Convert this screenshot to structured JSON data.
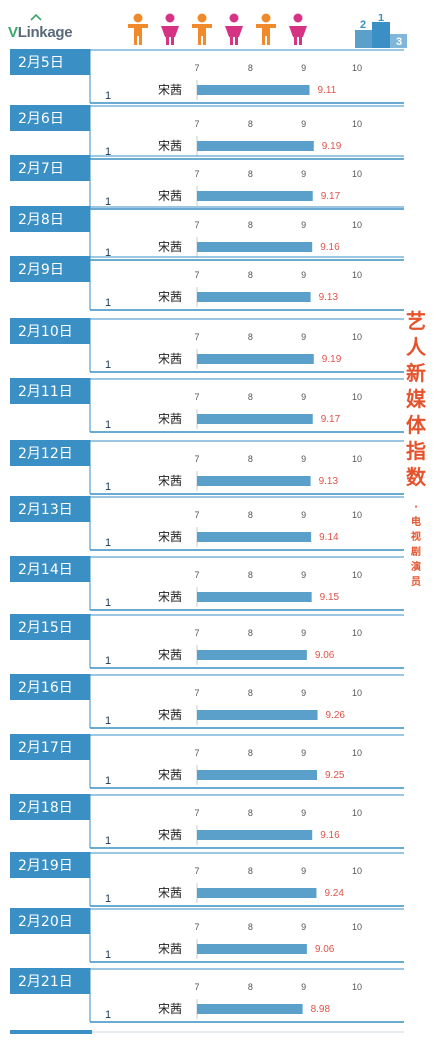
{
  "header": {
    "logo_text_v": "V",
    "logo_text_rest": "Link",
    "logo_text_age": "age",
    "people_icons": [
      "person-male-icon",
      "person-female-icon",
      "person-male-icon",
      "person-female-icon",
      "person-male-icon",
      "person-female-icon"
    ],
    "podium_icon": "podium-icon",
    "podium_numbers": [
      "2",
      "1",
      "3"
    ]
  },
  "side": {
    "title_chars": [
      "艺",
      "人",
      "新",
      "媒",
      "体",
      "指",
      "数"
    ],
    "dot": "·",
    "subtitle_chars": [
      "电",
      "视",
      "剧",
      "演",
      "员"
    ]
  },
  "colors": {
    "tab": "#3a8fc4",
    "bar": "#5b9fcb",
    "separator": "#3a8fc4",
    "value": "#e0534a",
    "title": "#e5532d",
    "male": "#f08a2a",
    "female": "#d63384"
  },
  "chart_data": {
    "type": "bar",
    "x_ticks": [
      "7",
      "8",
      "9",
      "10"
    ],
    "xlim": [
      7,
      10
    ],
    "rows": [
      {
        "date": "2月5日",
        "rank": "1",
        "name": "宋茜",
        "value": 9.11
      },
      {
        "date": "2月6日",
        "rank": "1",
        "name": "宋茜",
        "value": 9.19
      },
      {
        "date": "2月7日",
        "rank": "1",
        "name": "宋茜",
        "value": 9.17
      },
      {
        "date": "2月8日",
        "rank": "1",
        "name": "宋茜",
        "value": 9.16
      },
      {
        "date": "2月9日",
        "rank": "1",
        "name": "宋茜",
        "value": 9.13
      },
      {
        "date": "2月10日",
        "rank": "1",
        "name": "宋茜",
        "value": 9.19
      },
      {
        "date": "2月11日",
        "rank": "1",
        "name": "宋茜",
        "value": 9.17
      },
      {
        "date": "2月12日",
        "rank": "1",
        "name": "宋茜",
        "value": 9.13
      },
      {
        "date": "2月13日",
        "rank": "1",
        "name": "宋茜",
        "value": 9.14
      },
      {
        "date": "2月14日",
        "rank": "1",
        "name": "宋茜",
        "value": 9.15
      },
      {
        "date": "2月15日",
        "rank": "1",
        "name": "宋茜",
        "value": 9.06
      },
      {
        "date": "2月16日",
        "rank": "1",
        "name": "宋茜",
        "value": 9.26
      },
      {
        "date": "2月17日",
        "rank": "1",
        "name": "宋茜",
        "value": 9.25
      },
      {
        "date": "2月18日",
        "rank": "1",
        "name": "宋茜",
        "value": 9.16
      },
      {
        "date": "2月19日",
        "rank": "1",
        "name": "宋茜",
        "value": 9.24
      },
      {
        "date": "2月20日",
        "rank": "1",
        "name": "宋茜",
        "value": 9.06
      },
      {
        "date": "2月21日",
        "rank": "1",
        "name": "宋茜",
        "value": 8.98
      }
    ]
  }
}
